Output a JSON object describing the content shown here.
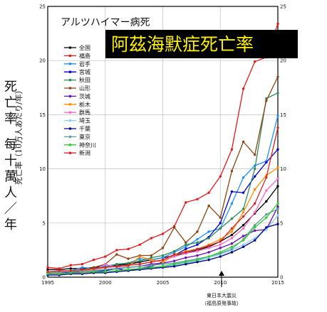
{
  "chart_data": {
    "type": "line",
    "title": "アルツハイマー病死",
    "overlay_title": "阿茲海默症死亡率",
    "ylabel": "死亡率（10万人あたり/年）",
    "ylabel_side": "死亡率 每十萬人／年",
    "annotation": [
      "東日本大震災",
      "（福島原発事故）"
    ],
    "xlim": [
      1995,
      2015
    ],
    "ylim": [
      0,
      25
    ],
    "x_ticks": [
      "1995",
      "2000",
      "2005",
      "2010",
      "2015"
    ],
    "y_ticks": [
      "0",
      "5",
      "10",
      "15",
      "20",
      "25"
    ],
    "grid": true,
    "legend_position": "top-left",
    "x": [
      1995,
      1996,
      1997,
      1998,
      1999,
      2000,
      2001,
      2002,
      2003,
      2004,
      2005,
      2006,
      2007,
      2008,
      2009,
      2010,
      2011,
      2012,
      2013,
      2014,
      2015
    ],
    "series": [
      {
        "name": "全国",
        "color": "#000000",
        "values": [
          0.7,
          0.7,
          0.8,
          0.8,
          0.9,
          1.0,
          1.1,
          1.2,
          1.4,
          1.6,
          1.8,
          2.0,
          2.2,
          2.5,
          2.8,
          3.3,
          3.9,
          4.8,
          5.9,
          7.0,
          8.4
        ]
      },
      {
        "name": "福島",
        "color": "#e41a1c",
        "values": [
          0.9,
          0.8,
          1.1,
          1.2,
          1.6,
          1.9,
          2.5,
          2.6,
          3.0,
          3.6,
          4.0,
          4.7,
          6.9,
          7.2,
          7.8,
          9.3,
          11.8,
          17.4,
          19.9,
          20.3,
          23.4
        ]
      },
      {
        "name": "岩手",
        "color": "#1e90ff",
        "values": [
          0.2,
          0.5,
          0.6,
          0.9,
          0.8,
          1.0,
          1.2,
          1.3,
          1.7,
          1.6,
          1.8,
          2.3,
          2.8,
          3.5,
          4.2,
          4.5,
          6.8,
          9.2,
          10.3,
          10.7,
          14.9
        ]
      },
      {
        "name": "宮城",
        "color": "#0000cd",
        "values": [
          0.4,
          0.3,
          0.5,
          0.4,
          0.5,
          0.6,
          0.8,
          0.6,
          0.8,
          1.0,
          1.4,
          2.0,
          2.6,
          3.0,
          3.7,
          5.0,
          7.9,
          7.8,
          9.3,
          10.6,
          11.8
        ]
      },
      {
        "name": "秋田",
        "color": "#2e8b57",
        "values": [
          0.4,
          0.5,
          0.6,
          0.7,
          0.7,
          0.9,
          1.2,
          1.3,
          1.5,
          1.8,
          2.0,
          2.4,
          3.0,
          3.2,
          3.6,
          4.5,
          5.4,
          6.3,
          10.0,
          16.5,
          17.0
        ]
      },
      {
        "name": "山形",
        "color": "#8b4513",
        "values": [
          0.4,
          0.6,
          0.5,
          0.5,
          0.9,
          1.2,
          2.1,
          1.7,
          2.0,
          2.0,
          2.7,
          4.6,
          3.2,
          4.2,
          6.6,
          5.5,
          9.8,
          12.5,
          11.3,
          16.3,
          18.5
        ]
      },
      {
        "name": "茨城",
        "color": "#6a0dad",
        "values": [
          0.3,
          0.4,
          0.4,
          0.5,
          0.6,
          0.7,
          0.8,
          0.9,
          1.0,
          1.2,
          1.3,
          1.5,
          1.8,
          2.0,
          2.3,
          2.7,
          3.1,
          3.8,
          4.3,
          4.4,
          6.5
        ]
      },
      {
        "name": "栃木",
        "color": "#ff8c00",
        "values": [
          0.5,
          0.5,
          0.6,
          0.6,
          0.7,
          0.9,
          1.0,
          1.0,
          1.9,
          1.6,
          1.4,
          2.0,
          2.4,
          2.6,
          3.0,
          3.5,
          4.2,
          6.0,
          8.1,
          9.4,
          10.1
        ]
      },
      {
        "name": "群馬",
        "color": "#ff66cc",
        "values": [
          0.3,
          0.4,
          0.6,
          0.5,
          0.6,
          1.2,
          0.9,
          1.1,
          1.2,
          1.4,
          1.6,
          1.9,
          2.2,
          2.4,
          2.7,
          3.0,
          3.6,
          4.5,
          6.0,
          8.0,
          9.1
        ]
      },
      {
        "name": "埼玉",
        "color": "#87cefa",
        "values": [
          0.2,
          0.3,
          0.3,
          0.4,
          0.4,
          0.5,
          0.6,
          0.7,
          0.8,
          0.9,
          1.0,
          1.1,
          1.3,
          1.5,
          1.8,
          2.1,
          2.5,
          3.0,
          3.6,
          4.4,
          5.7
        ]
      },
      {
        "name": "千葉",
        "color": "#00008b",
        "values": [
          0.2,
          0.2,
          0.3,
          0.3,
          0.4,
          0.4,
          0.5,
          0.6,
          0.7,
          0.8,
          0.9,
          1.0,
          1.2,
          1.4,
          1.6,
          1.9,
          2.3,
          2.8,
          3.4,
          4.6,
          4.9
        ]
      },
      {
        "name": "東京",
        "color": "#5f9ea0",
        "values": [
          0.4,
          0.5,
          0.5,
          0.6,
          0.6,
          0.7,
          0.8,
          0.9,
          1.0,
          1.1,
          1.2,
          1.3,
          1.5,
          1.7,
          1.9,
          2.2,
          2.6,
          3.5,
          4.8,
          5.8,
          6.3
        ]
      },
      {
        "name": "神奈川",
        "color": "#32cd32",
        "values": [
          0.3,
          0.3,
          0.4,
          0.4,
          0.5,
          0.5,
          0.6,
          0.7,
          0.8,
          0.9,
          1.0,
          1.2,
          1.4,
          1.6,
          1.9,
          2.3,
          2.8,
          3.4,
          4.6,
          5.5,
          6.8
        ]
      },
      {
        "name": "新潟",
        "color": "#d62728",
        "values": [
          0.5,
          0.6,
          0.6,
          0.7,
          0.8,
          0.9,
          1.0,
          1.1,
          1.2,
          1.4,
          1.6,
          2.1,
          2.3,
          2.6,
          2.9,
          3.3,
          4.5,
          5.6,
          6.8,
          9.2,
          13.8
        ]
      }
    ]
  }
}
